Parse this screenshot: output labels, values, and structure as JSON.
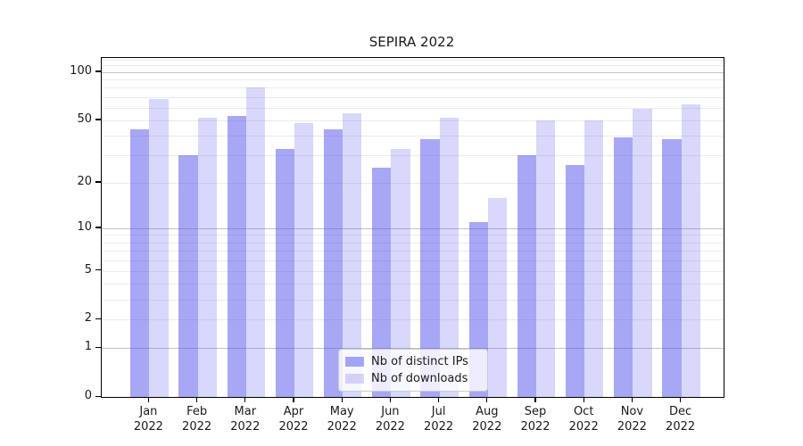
{
  "title": "SEPIRA 2022",
  "colors": {
    "bar_ips": "rgba(79,79,236,0.50)",
    "bar_downloads": "rgba(79,79,236,0.22)",
    "grid_major": "#c3c3c3",
    "grid_minor": "#ebebeb",
    "axis": "#000000",
    "text": "#1a1a1a",
    "legend_border": "#cccccc",
    "legend_bg": "rgba(255,255,255,0.8)"
  },
  "chart_data": {
    "type": "bar",
    "title": "SEPIRA 2022",
    "categories": [
      "Jan",
      "Feb",
      "Mar",
      "Apr",
      "May",
      "Jun",
      "Jul",
      "Aug",
      "Sep",
      "Oct",
      "Nov",
      "Dec"
    ],
    "category_year_label": "2022",
    "series": [
      {
        "name": "Nb of distinct IPs",
        "values": [
          44,
          30,
          53,
          33,
          44,
          25,
          38,
          11,
          30,
          26,
          39,
          38
        ],
        "color_key": "bar_ips"
      },
      {
        "name": "Nb of downloads",
        "values": [
          68,
          52,
          80,
          48,
          55,
          33,
          52,
          16,
          50,
          50,
          59,
          63
        ],
        "color_key": "bar_downloads"
      }
    ],
    "yscale": "symlog-log1p",
    "ylabel": "",
    "xlabel": "",
    "ylim": [
      0,
      123
    ],
    "yticks_labeled": [
      0,
      1,
      2,
      5,
      10,
      20,
      50,
      100
    ],
    "ytick_labels": [
      "0",
      "1",
      "2",
      "5",
      "10",
      "20",
      "50",
      "100"
    ],
    "grid_major_values": [
      1,
      10,
      100
    ],
    "grid_minor_values": [
      2,
      3,
      4,
      5,
      6,
      7,
      8,
      9,
      20,
      30,
      40,
      50,
      60,
      70,
      80,
      90,
      110,
      120
    ],
    "grid": true,
    "legend_position": "lower center"
  }
}
